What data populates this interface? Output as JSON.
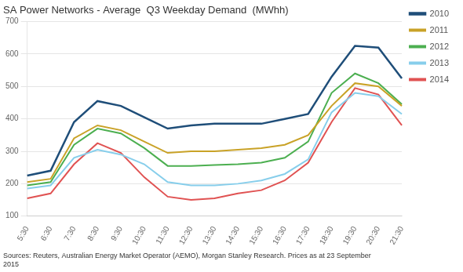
{
  "chart_data": {
    "type": "line",
    "title": "SA Power Networks - Average  Q3 Weekday Demand  (MWhh)",
    "annotations": [
      "Sources: Reuters, Australian Energy Market Operator (AEMO), Morgan Stanley Research. Prices as at 23 September",
      "2015"
    ],
    "categories": [
      "5:30",
      "6:30",
      "7:30",
      "8:30",
      "9:30",
      "10:30",
      "11:30",
      "12:30",
      "13:30",
      "14:30",
      "15:30",
      "16:30",
      "17:30",
      "18:30",
      "19:30",
      "20:30",
      "21:30"
    ],
    "series": [
      {
        "name": "2010",
        "color": "#1F4E79",
        "values": [
          225,
          240,
          390,
          455,
          440,
          405,
          370,
          380,
          385,
          385,
          385,
          400,
          415,
          530,
          625,
          620,
          525
        ]
      },
      {
        "name": "2011",
        "color": "#C9A227",
        "values": [
          205,
          215,
          340,
          380,
          365,
          330,
          295,
          300,
          300,
          305,
          310,
          320,
          350,
          440,
          510,
          500,
          440
        ]
      },
      {
        "name": "2012",
        "color": "#4CAF50",
        "values": [
          195,
          205,
          320,
          370,
          355,
          310,
          255,
          255,
          258,
          260,
          265,
          280,
          330,
          480,
          540,
          510,
          445
        ]
      },
      {
        "name": "2013",
        "color": "#87CEEB",
        "values": [
          185,
          195,
          280,
          305,
          290,
          260,
          205,
          195,
          195,
          200,
          210,
          230,
          275,
          420,
          480,
          470,
          415
        ]
      },
      {
        "name": "2014",
        "color": "#E05252",
        "values": [
          155,
          170,
          260,
          325,
          295,
          220,
          160,
          150,
          155,
          170,
          180,
          210,
          265,
          390,
          495,
          475,
          380
        ]
      }
    ],
    "ylim": [
      100,
      700
    ],
    "yticks": [
      100,
      200,
      300,
      400,
      500,
      600,
      700
    ],
    "grid": true,
    "legend": "right"
  }
}
